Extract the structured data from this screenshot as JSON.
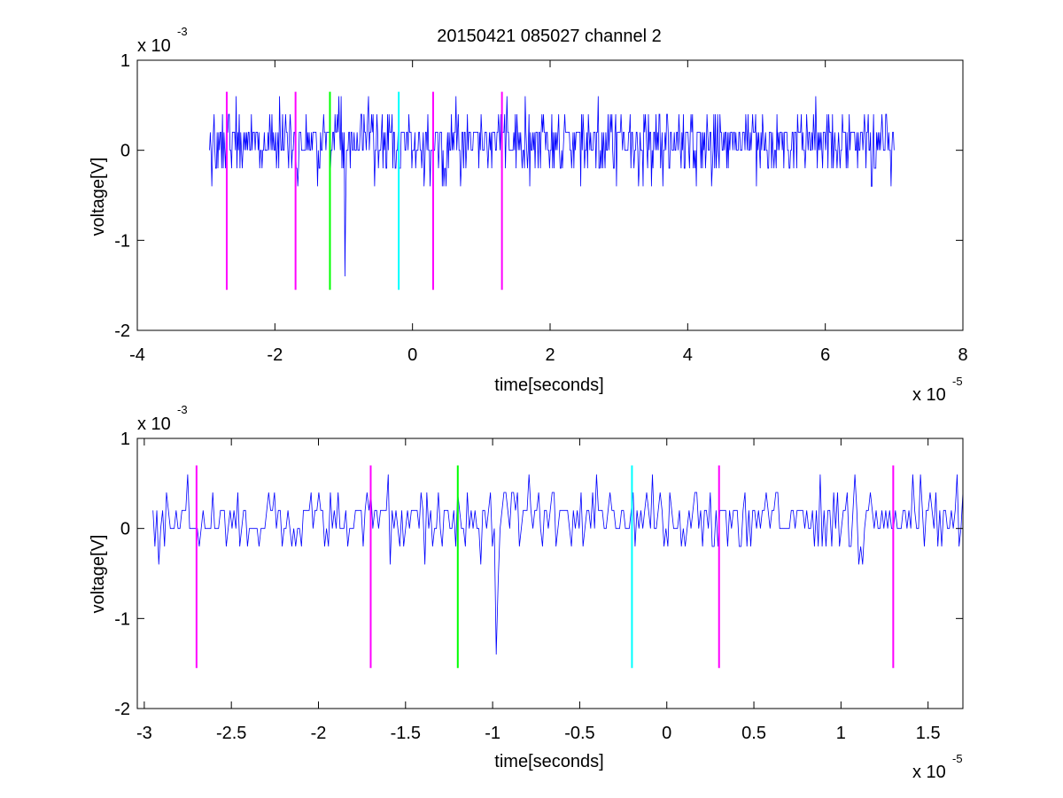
{
  "title": "20150421 085027 channel 2",
  "chart_data": [
    {
      "type": "line",
      "title": "20150421 085027 channel 2",
      "xlabel": "time[seconds]",
      "ylabel": "voltage[V]",
      "x_multiplier": {
        "base": "x 10",
        "exponent": "-5"
      },
      "y_multiplier": {
        "base": "x 10",
        "exponent": "-3"
      },
      "xlim": [
        -4,
        8
      ],
      "ylim": [
        -2,
        1
      ],
      "x_ticks": [
        -4,
        -2,
        0,
        2,
        4,
        6,
        8
      ],
      "x_tick_labels": [
        "-4",
        "-2",
        "0",
        "2",
        "4",
        "6",
        "8"
      ],
      "y_ticks": [
        -2,
        -1,
        0,
        1
      ],
      "y_tick_labels": [
        "-2",
        "-1",
        "0",
        "1"
      ],
      "grid": false,
      "legend": "none",
      "series": [
        {
          "color": "#0000ff",
          "x_range": [
            -2.95,
            7.0
          ],
          "description_values": {
            "baseline": 0.0,
            "upper_levels": [
              0.2,
              0.4,
              0.6
            ],
            "lower_levels": [
              -0.2,
              -0.4
            ]
          },
          "spikes": [
            {
              "x": -0.98,
              "y": -1.4
            },
            {
              "x": 5.0,
              "y": -0.4
            },
            {
              "x": 2.7,
              "y": 0.6
            }
          ]
        }
      ],
      "markers": [
        {
          "x": -2.7,
          "color": "#ff00ff",
          "ymin": -1.55,
          "ymax": 0.65
        },
        {
          "x": -1.7,
          "color": "#ff00ff",
          "ymin": -1.55,
          "ymax": 0.65
        },
        {
          "x": -1.2,
          "color": "#00ff00",
          "ymin": -1.55,
          "ymax": 0.65
        },
        {
          "x": -0.2,
          "color": "#00ffff",
          "ymin": -1.55,
          "ymax": 0.65
        },
        {
          "x": 0.3,
          "color": "#ff00ff",
          "ymin": -1.55,
          "ymax": 0.65
        },
        {
          "x": 1.3,
          "color": "#ff00ff",
          "ymin": -1.55,
          "ymax": 0.65
        }
      ]
    },
    {
      "type": "line",
      "xlabel": "time[seconds]",
      "ylabel": "voltage[V]",
      "x_multiplier": {
        "base": "x 10",
        "exponent": "-5"
      },
      "y_multiplier": {
        "base": "x 10",
        "exponent": "-3"
      },
      "xlim": [
        -3.04,
        1.7
      ],
      "ylim": [
        -2,
        1
      ],
      "x_ticks": [
        -3,
        -2.5,
        -2,
        -1.5,
        -1,
        -0.5,
        0,
        0.5,
        1,
        1.5
      ],
      "x_tick_labels": [
        "-3",
        "-2.5",
        "-2",
        "-1.5",
        "-1",
        "-0.5",
        "0",
        "0.5",
        "1",
        "1.5"
      ],
      "y_ticks": [
        -2,
        -1,
        0,
        1
      ],
      "y_tick_labels": [
        "-2",
        "-1",
        "0",
        "1"
      ],
      "grid": false,
      "legend": "none",
      "series": [
        {
          "color": "#0000ff",
          "x_range": [
            -2.95,
            1.7
          ],
          "description_values": {
            "baseline": 0.0,
            "upper_levels": [
              0.2,
              0.4,
              0.6
            ],
            "lower_levels": [
              -0.2,
              -0.4
            ]
          },
          "spikes": [
            {
              "x": -0.98,
              "y": -1.4
            },
            {
              "x": -1.6,
              "y": 0.6
            },
            {
              "x": -0.4,
              "y": 0.6
            }
          ]
        }
      ],
      "markers": [
        {
          "x": -2.7,
          "color": "#ff00ff",
          "ymin": -1.55,
          "ymax": 0.7
        },
        {
          "x": -1.7,
          "color": "#ff00ff",
          "ymin": -1.55,
          "ymax": 0.7
        },
        {
          "x": -1.2,
          "color": "#00ff00",
          "ymin": -1.55,
          "ymax": 0.7
        },
        {
          "x": -0.2,
          "color": "#00ffff",
          "ymin": -1.55,
          "ymax": 0.7
        },
        {
          "x": 0.3,
          "color": "#ff00ff",
          "ymin": -1.55,
          "ymax": 0.7
        },
        {
          "x": 1.3,
          "color": "#ff00ff",
          "ymin": -1.55,
          "ymax": 0.7
        }
      ]
    }
  ]
}
